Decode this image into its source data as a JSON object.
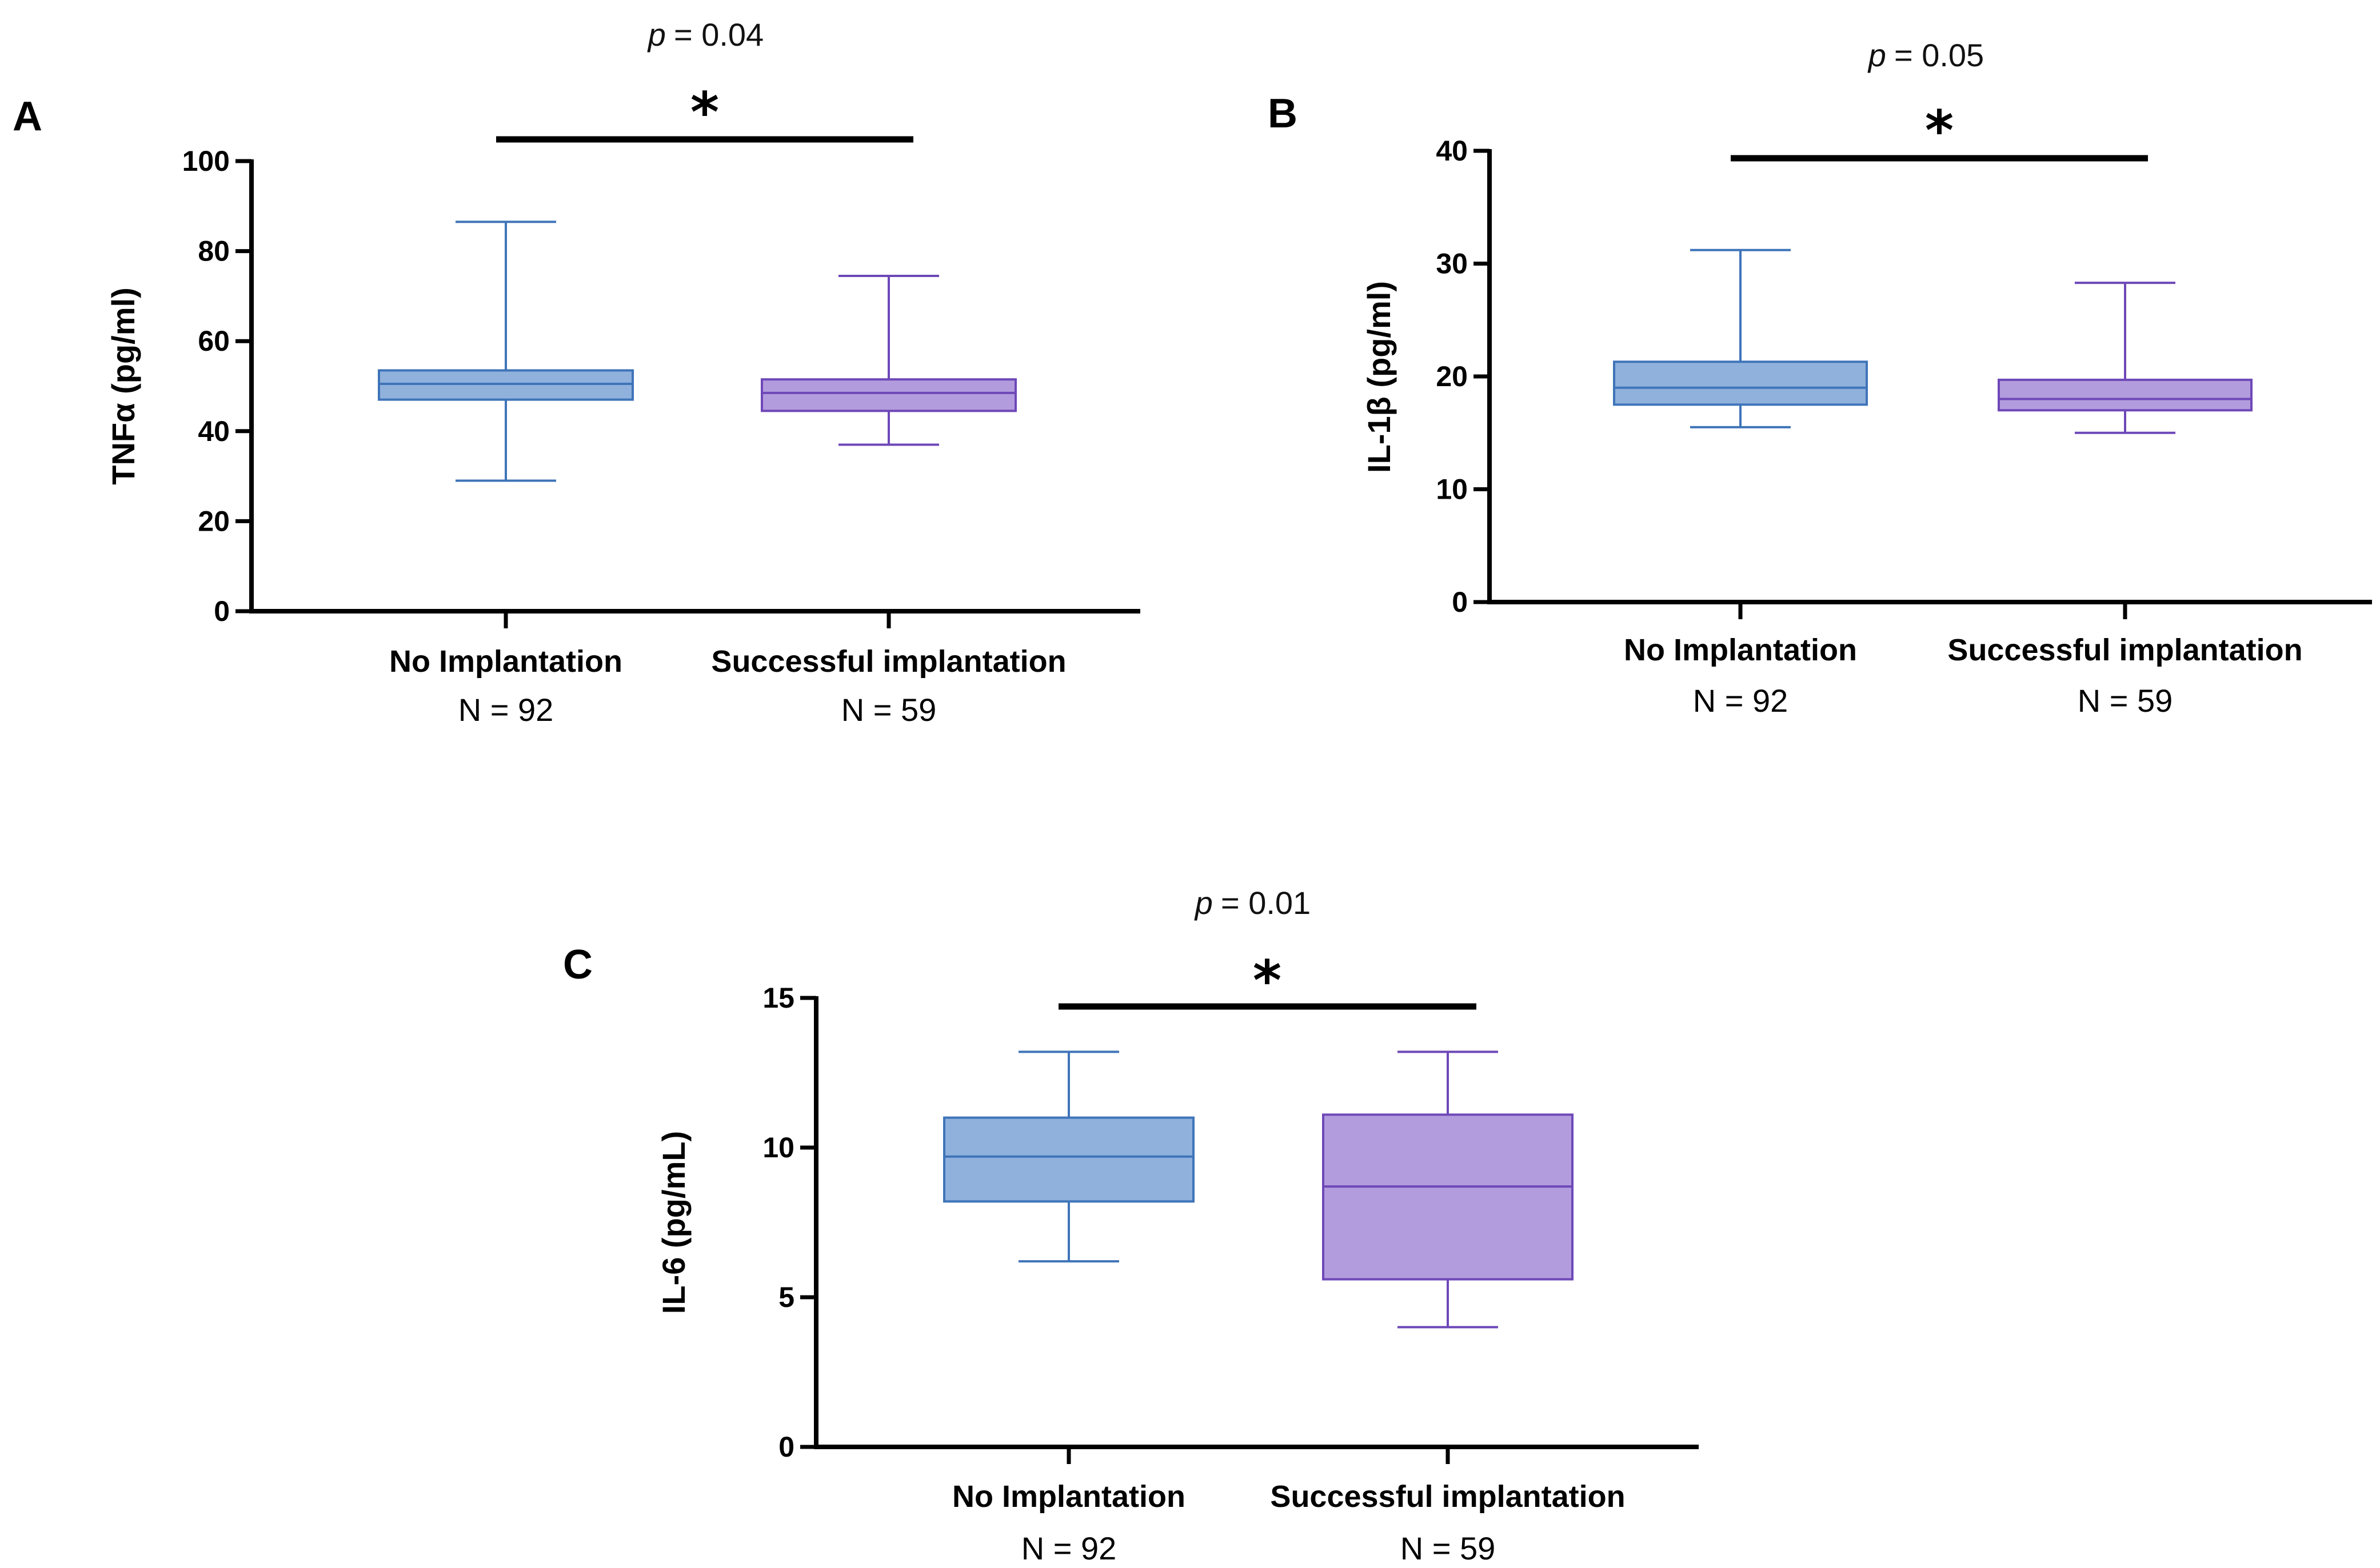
{
  "chart_data": [
    {
      "panel": "A",
      "type": "box",
      "ylabel": "TNFα  (pg/ml)",
      "ylim": [
        0,
        100
      ],
      "yticks": [
        "0",
        "20",
        "40",
        "60",
        "80",
        "100"
      ],
      "p_value": "= 0.04",
      "p_symbol": "p",
      "significance": "*",
      "series": [
        {
          "category": "No Implantation",
          "n_label": "N = 92",
          "min": 29,
          "q1": 47,
          "median": 50.5,
          "q3": 53.5,
          "max": 86.5
        },
        {
          "category": "Successful implantation",
          "n_label": "N = 59",
          "min": 37,
          "q1": 44.5,
          "median": 48.5,
          "q3": 51.5,
          "max": 74.5
        }
      ]
    },
    {
      "panel": "B",
      "type": "box",
      "ylabel": "IL-1β (pg/ml)",
      "ylim": [
        0,
        40
      ],
      "yticks": [
        "0",
        "10",
        "20",
        "30",
        "40"
      ],
      "p_value": "= 0.05",
      "p_symbol": "p",
      "significance": "*",
      "series": [
        {
          "category": "No Implantation",
          "n_label": "N = 92",
          "min": 15.5,
          "q1": 17.5,
          "median": 19,
          "q3": 21.3,
          "max": 31.2
        },
        {
          "category": "Successful implantation",
          "n_label": "N = 59",
          "min": 15,
          "q1": 17,
          "median": 18,
          "q3": 19.7,
          "max": 28.3
        }
      ]
    },
    {
      "panel": "C",
      "type": "box",
      "ylabel": "IL-6  (pg/mL)",
      "ylim": [
        0,
        15
      ],
      "yticks": [
        "0",
        "5",
        "10",
        "15"
      ],
      "p_value": "= 0.01",
      "p_symbol": "p",
      "significance": "*",
      "series": [
        {
          "category": "No Implantation",
          "n_label": "N = 92",
          "min": 6.2,
          "q1": 8.2,
          "median": 9.7,
          "q3": 11,
          "max": 13.2
        },
        {
          "category": "Successful implantation",
          "n_label": "N = 59",
          "min": 4,
          "q1": 5.6,
          "median": 8.7,
          "q3": 11.1,
          "max": 13.2
        }
      ]
    }
  ],
  "colors": {
    "group1_fill": "#8fb1dc",
    "group1_stroke": "#3f74b9",
    "group2_fill": "#b39cdd",
    "group2_stroke": "#6e48b8",
    "axis": "#000000"
  }
}
